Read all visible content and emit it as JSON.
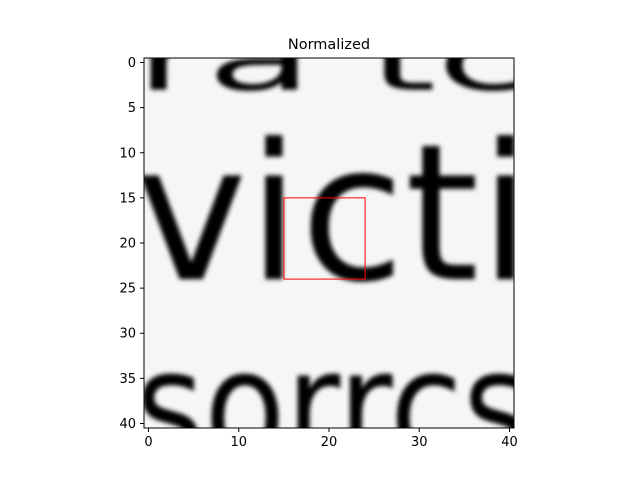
{
  "chart_data": {
    "type": "heatmap",
    "title": "Normalized",
    "colormap": "gray",
    "xlim": [
      -0.5,
      40.5
    ],
    "ylim": [
      40.5,
      -0.5
    ],
    "y_inverted": true,
    "xticks": [
      0,
      10,
      20,
      30,
      40
    ],
    "yticks": [
      0,
      5,
      10,
      15,
      20,
      25,
      30,
      35,
      40
    ],
    "grid": false,
    "colors": {
      "background": "#ffffff",
      "axes": "#000000",
      "box": "#ff0000"
    },
    "highlight_box": {
      "x0": 15,
      "x1": 24,
      "y0": 15,
      "y1": 24,
      "color": "#ff0000"
    },
    "content_description": "Upscaled grayscale crop of printed text; middle line reads 'victi', with partial text lines above and below; red box marks the letter 'c'.",
    "glyphs": [
      {
        "text": "ra tc",
        "baseline_row": 3,
        "font_rows": 10
      },
      {
        "text": "victi",
        "baseline_row": 24,
        "font_rows": 21
      },
      {
        "text": "sorrcs",
        "baseline_row": 44,
        "font_rows": 17
      }
    ]
  }
}
